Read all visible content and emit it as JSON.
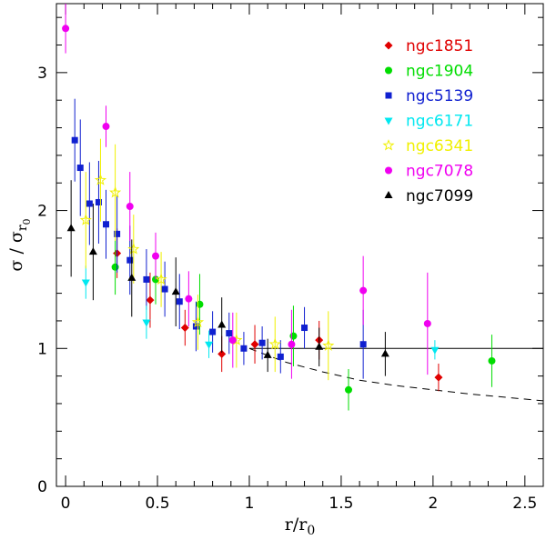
{
  "chart_data": {
    "type": "scatter",
    "title": "",
    "xlabel": "r/r",
    "xlabel_sub": "0",
    "ylabel": "σ / σ",
    "ylabel_sub": "r",
    "ylabel_subsub": "0",
    "xlim": [
      -0.05,
      2.6
    ],
    "ylim": [
      0,
      3.5
    ],
    "xticks": [
      0,
      0.5,
      1,
      1.5,
      2,
      2.5
    ],
    "xtick_labels": [
      "0",
      "0.5",
      "1",
      "1.5",
      "2",
      "2.5"
    ],
    "yticks": [
      0,
      1,
      2,
      3
    ],
    "ytick_labels": [
      "0",
      "1",
      "2",
      "3"
    ],
    "legend_position": "top-right",
    "reference_lines": [
      {
        "name": "unity",
        "style": "solid",
        "value": 1,
        "x_from": 1.0,
        "x_to": 2.6
      },
      {
        "name": "model",
        "style": "dashed",
        "x": [
          1.0,
          1.2,
          1.4,
          1.6,
          1.8,
          2.0,
          2.2,
          2.4,
          2.6
        ],
        "y": [
          1.0,
          0.9,
          0.83,
          0.77,
          0.73,
          0.7,
          0.67,
          0.645,
          0.62
        ]
      }
    ],
    "series": [
      {
        "name": "ngc1851",
        "color": "#e00000",
        "marker": "diamond",
        "points": [
          {
            "x": 0.28,
            "y": 1.69,
            "err": 0.18
          },
          {
            "x": 0.46,
            "y": 1.35,
            "err": 0.2
          },
          {
            "x": 0.65,
            "y": 1.15,
            "err": 0.13
          },
          {
            "x": 0.85,
            "y": 0.96,
            "err": 0.13
          },
          {
            "x": 1.03,
            "y": 1.03,
            "err": 0.14
          },
          {
            "x": 1.38,
            "y": 1.06,
            "err": 0.14
          },
          {
            "x": 2.03,
            "y": 0.79,
            "err": 0.1
          }
        ]
      },
      {
        "name": "ngc1904",
        "color": "#00dd00",
        "marker": "circle",
        "points": [
          {
            "x": 0.27,
            "y": 1.59,
            "err": 0.2
          },
          {
            "x": 0.49,
            "y": 1.5,
            "err": 0.18
          },
          {
            "x": 0.73,
            "y": 1.32,
            "err": 0.22
          },
          {
            "x": 1.24,
            "y": 1.09,
            "err": 0.22
          },
          {
            "x": 1.54,
            "y": 0.7,
            "err": 0.15
          },
          {
            "x": 2.32,
            "y": 0.91,
            "err": 0.19
          }
        ]
      },
      {
        "name": "ngc5139",
        "color": "#1020d0",
        "marker": "square",
        "points": [
          {
            "x": 0.05,
            "y": 2.51,
            "err": 0.3
          },
          {
            "x": 0.08,
            "y": 2.31,
            "err": 0.35
          },
          {
            "x": 0.13,
            "y": 2.05,
            "err": 0.3
          },
          {
            "x": 0.18,
            "y": 2.06,
            "err": 0.3
          },
          {
            "x": 0.22,
            "y": 1.9,
            "err": 0.25
          },
          {
            "x": 0.28,
            "y": 1.83,
            "err": 0.28
          },
          {
            "x": 0.35,
            "y": 1.64,
            "err": 0.25
          },
          {
            "x": 0.44,
            "y": 1.5,
            "err": 0.22
          },
          {
            "x": 0.54,
            "y": 1.43,
            "err": 0.2
          },
          {
            "x": 0.62,
            "y": 1.34,
            "err": 0.2
          },
          {
            "x": 0.71,
            "y": 1.16,
            "err": 0.18
          },
          {
            "x": 0.8,
            "y": 1.12,
            "err": 0.15
          },
          {
            "x": 0.89,
            "y": 1.11,
            "err": 0.15
          },
          {
            "x": 0.97,
            "y": 1.0,
            "err": 0.12
          },
          {
            "x": 1.07,
            "y": 1.04,
            "err": 0.12
          },
          {
            "x": 1.17,
            "y": 0.94,
            "err": 0.12
          },
          {
            "x": 1.3,
            "y": 1.15,
            "err": 0.15
          },
          {
            "x": 1.62,
            "y": 1.03,
            "err": 0.25
          }
        ]
      },
      {
        "name": "ngc6171",
        "color": "#00e8f0",
        "marker": "triangle-down",
        "points": [
          {
            "x": 0.11,
            "y": 1.48,
            "err": 0.12
          },
          {
            "x": 0.44,
            "y": 1.19,
            "err": 0.12
          },
          {
            "x": 0.78,
            "y": 1.03,
            "err": 0.1
          },
          {
            "x": 2.01,
            "y": 0.99,
            "err": 0.07
          }
        ]
      },
      {
        "name": "ngc6341",
        "color": "#f0f000",
        "marker": "star",
        "points": [
          {
            "x": 0.11,
            "y": 1.93,
            "err": 0.35
          },
          {
            "x": 0.19,
            "y": 2.22,
            "err": 0.3
          },
          {
            "x": 0.27,
            "y": 2.13,
            "err": 0.35
          },
          {
            "x": 0.37,
            "y": 1.72,
            "err": 0.25
          },
          {
            "x": 0.52,
            "y": 1.5,
            "err": 0.2
          },
          {
            "x": 0.72,
            "y": 1.19,
            "err": 0.2
          },
          {
            "x": 0.93,
            "y": 1.06,
            "err": 0.2
          },
          {
            "x": 1.14,
            "y": 1.03,
            "err": 0.2
          },
          {
            "x": 1.43,
            "y": 1.02,
            "err": 0.25
          }
        ]
      },
      {
        "name": "ngc7078",
        "color": "#f000f0",
        "marker": "circle",
        "points": [
          {
            "x": 0.0,
            "y": 3.32,
            "err": 0.18
          },
          {
            "x": 0.22,
            "y": 2.61,
            "err": 0.15
          },
          {
            "x": 0.35,
            "y": 2.03,
            "err": 0.25
          },
          {
            "x": 0.49,
            "y": 1.67,
            "err": 0.17
          },
          {
            "x": 0.67,
            "y": 1.36,
            "err": 0.2
          },
          {
            "x": 0.91,
            "y": 1.06,
            "err": 0.2
          },
          {
            "x": 1.23,
            "y": 1.03,
            "err": 0.25
          },
          {
            "x": 1.62,
            "y": 1.42,
            "err": 0.25
          },
          {
            "x": 1.97,
            "y": 1.18,
            "err": 0.37
          }
        ]
      },
      {
        "name": "ngc7099",
        "color": "#000000",
        "marker": "triangle",
        "points": [
          {
            "x": 0.03,
            "y": 1.87,
            "err": 0.35
          },
          {
            "x": 0.15,
            "y": 1.7,
            "err": 0.35
          },
          {
            "x": 0.36,
            "y": 1.51,
            "err": 0.28
          },
          {
            "x": 0.6,
            "y": 1.41,
            "err": 0.25
          },
          {
            "x": 0.85,
            "y": 1.17,
            "err": 0.2
          },
          {
            "x": 1.1,
            "y": 0.95,
            "err": 0.12
          },
          {
            "x": 1.38,
            "y": 1.01,
            "err": 0.14
          },
          {
            "x": 1.74,
            "y": 0.96,
            "err": 0.16
          }
        ]
      }
    ]
  }
}
